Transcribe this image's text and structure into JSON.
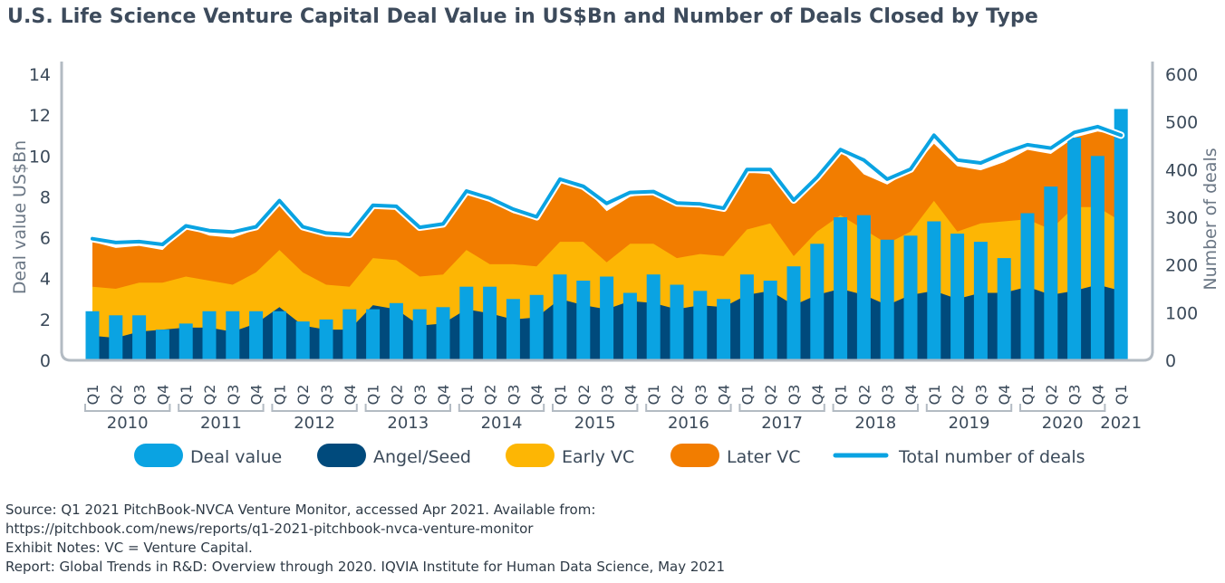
{
  "title": "U.S. Life Science Venture Capital Deal Value in US$Bn and Number of Deals Closed by Type",
  "colors": {
    "deal_value": "#0aa3e2",
    "angel_seed": "#004a7c",
    "early_vc": "#fdb604",
    "later_vc": "#f27d00",
    "total_deals_line": "#0aa3e2",
    "axis": "#b3bbc3",
    "text": "#3b4a5a"
  },
  "chart_data": {
    "type": "bar",
    "title": "U.S. Life Science Venture Capital Deal Value in US$Bn and Number of Deals Closed by Type",
    "ylabel": "Deal value US$Bn",
    "y2label": "Number of deals",
    "ylim": [
      0,
      14
    ],
    "y2lim": [
      0,
      600
    ],
    "yticks": [
      0,
      2,
      4,
      6,
      8,
      10,
      12,
      14
    ],
    "y2ticks": [
      0,
      100,
      200,
      300,
      400,
      500,
      600
    ],
    "legend_position": "bottom",
    "legend": [
      "Deal value",
      "Angel/Seed",
      "Early VC",
      "Later VC",
      "Total number of deals"
    ],
    "categories": [
      "Q1",
      "Q2",
      "Q3",
      "Q4",
      "Q1",
      "Q2",
      "Q3",
      "Q4",
      "Q1",
      "Q2",
      "Q3",
      "Q4",
      "Q1",
      "Q2",
      "Q3",
      "Q4",
      "Q1",
      "Q2",
      "Q3",
      "Q4",
      "Q1",
      "Q2",
      "Q3",
      "Q4",
      "Q1",
      "Q2",
      "Q3",
      "Q4",
      "Q1",
      "Q2",
      "Q3",
      "Q4",
      "Q1",
      "Q2",
      "Q3",
      "Q4",
      "Q1",
      "Q2",
      "Q3",
      "Q4",
      "Q1",
      "Q2",
      "Q3",
      "Q4",
      "Q1"
    ],
    "years": [
      {
        "label": "2010",
        "quarters": 4
      },
      {
        "label": "2011",
        "quarters": 4
      },
      {
        "label": "2012",
        "quarters": 4
      },
      {
        "label": "2013",
        "quarters": 4
      },
      {
        "label": "2014",
        "quarters": 4
      },
      {
        "label": "2015",
        "quarters": 4
      },
      {
        "label": "2016",
        "quarters": 4
      },
      {
        "label": "2017",
        "quarters": 4
      },
      {
        "label": "2018",
        "quarters": 4
      },
      {
        "label": "2019",
        "quarters": 4
      },
      {
        "label": "2020",
        "quarters": 4
      },
      {
        "label": "2021",
        "quarters": 1
      }
    ],
    "series": [
      {
        "name": "Deal value",
        "type": "bar",
        "axis": "left",
        "values": [
          2.4,
          2.2,
          2.2,
          1.5,
          1.8,
          2.4,
          2.4,
          2.4,
          2.4,
          1.9,
          2.0,
          2.5,
          2.5,
          2.8,
          2.5,
          2.6,
          3.6,
          3.6,
          3.0,
          3.2,
          4.2,
          3.9,
          4.1,
          3.3,
          4.2,
          3.7,
          3.4,
          3.0,
          4.2,
          3.9,
          4.6,
          5.7,
          7.0,
          7.1,
          5.9,
          6.1,
          6.8,
          6.2,
          5.8,
          5.0,
          7.2,
          8.5,
          10.9,
          10.0,
          12.3
        ]
      },
      {
        "name": "Angel/Seed",
        "type": "area",
        "axis": "left",
        "values": [
          1.2,
          1.1,
          1.4,
          1.5,
          1.6,
          1.6,
          1.4,
          1.8,
          2.6,
          1.7,
          1.5,
          1.5,
          2.7,
          2.5,
          1.7,
          1.8,
          2.5,
          2.3,
          2.0,
          2.1,
          3.0,
          2.7,
          2.5,
          2.9,
          2.8,
          2.5,
          2.7,
          2.6,
          3.2,
          3.4,
          2.7,
          3.2,
          3.5,
          3.2,
          2.7,
          3.2,
          3.4,
          3.0,
          3.3,
          3.3,
          3.6,
          3.2,
          3.4,
          3.7,
          3.4
        ]
      },
      {
        "name": "Early VC",
        "type": "area",
        "axis": "left",
        "values": [
          3.6,
          3.5,
          3.8,
          3.8,
          4.1,
          3.9,
          3.7,
          4.3,
          5.4,
          4.3,
          3.7,
          3.6,
          5.0,
          4.9,
          4.1,
          4.2,
          5.4,
          4.7,
          4.7,
          4.6,
          5.8,
          5.8,
          4.8,
          5.7,
          5.7,
          5.0,
          5.2,
          5.1,
          6.4,
          6.7,
          5.1,
          6.3,
          7.1,
          6.4,
          5.7,
          6.3,
          7.8,
          6.3,
          6.7,
          6.8,
          6.9,
          6.4,
          7.5,
          7.5,
          6.8
        ]
      },
      {
        "name": "Later VC",
        "type": "area",
        "axis": "left",
        "values": [
          5.8,
          5.5,
          5.6,
          5.4,
          6.5,
          6.1,
          6.0,
          6.4,
          7.7,
          6.6,
          6.1,
          6.0,
          7.5,
          7.4,
          6.5,
          6.7,
          8.1,
          7.8,
          7.2,
          6.9,
          8.7,
          8.5,
          7.3,
          8.0,
          8.2,
          7.6,
          7.5,
          7.3,
          9.2,
          9.1,
          7.7,
          8.8,
          10.3,
          9.1,
          8.6,
          9.3,
          10.6,
          9.5,
          9.3,
          9.7,
          10.3,
          10.1,
          10.9,
          11.2,
          11.0
        ]
      },
      {
        "name": "Total number of deals",
        "type": "line",
        "axis": "right",
        "values": [
          255,
          247,
          249,
          243,
          282,
          272,
          269,
          280,
          335,
          280,
          267,
          264,
          325,
          323,
          279,
          286,
          355,
          340,
          317,
          301,
          380,
          365,
          329,
          352,
          354,
          330,
          328,
          319,
          400,
          400,
          336,
          384,
          442,
          420,
          380,
          401,
          472,
          420,
          414,
          435,
          452,
          445,
          478,
          490,
          472
        ]
      }
    ]
  },
  "notes": [
    "Source: Q1 2021 PitchBook-NVCA Venture Monitor, accessed Apr 2021. Available from:",
    "https://pitchbook.com/news/reports/q1-2021-pitchbook-nvca-venture-monitor",
    "Exhibit Notes: VC = Venture Capital.",
    "Report: Global Trends in R&D: Overview through 2020. IQVIA Institute for Human Data Science, May 2021"
  ]
}
